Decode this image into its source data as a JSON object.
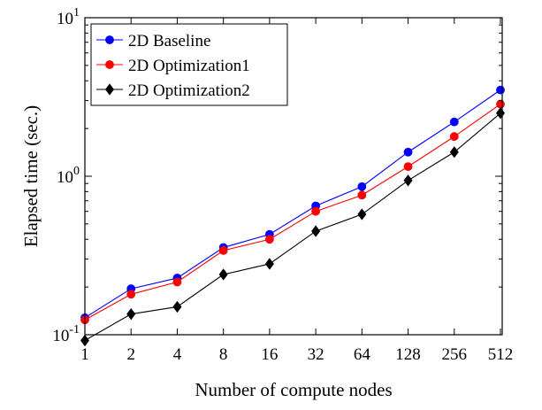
{
  "chart_data": {
    "type": "line",
    "title": "",
    "xlabel": "Number of compute nodes",
    "ylabel": "Elapsed time (sec.)",
    "x_scale": "categorical",
    "y_scale": "log",
    "categories": [
      "1",
      "2",
      "4",
      "8",
      "16",
      "32",
      "64",
      "128",
      "256",
      "512"
    ],
    "ylim": [
      0.1,
      10
    ],
    "y_ticks": [
      {
        "value": 0.1,
        "base": "10",
        "exp": "-1"
      },
      {
        "value": 1,
        "base": "10",
        "exp": "0"
      },
      {
        "value": 10,
        "base": "10",
        "exp": "1"
      }
    ],
    "grid": false,
    "legend_position": "top-left",
    "series": [
      {
        "name": "2D Baseline",
        "color": "#0000ff",
        "marker": "circle",
        "values": [
          0.128,
          0.195,
          0.228,
          0.355,
          0.43,
          0.65,
          0.86,
          1.42,
          2.2,
          3.5
        ]
      },
      {
        "name": "2D Optimization1",
        "color": "#ff0000",
        "marker": "circle",
        "values": [
          0.124,
          0.18,
          0.215,
          0.34,
          0.4,
          0.6,
          0.76,
          1.15,
          1.78,
          2.85
        ]
      },
      {
        "name": "2D Optimization2",
        "color": "#000000",
        "marker": "diamond",
        "values": [
          0.092,
          0.135,
          0.15,
          0.24,
          0.28,
          0.45,
          0.575,
          0.94,
          1.42,
          2.5
        ]
      }
    ]
  }
}
